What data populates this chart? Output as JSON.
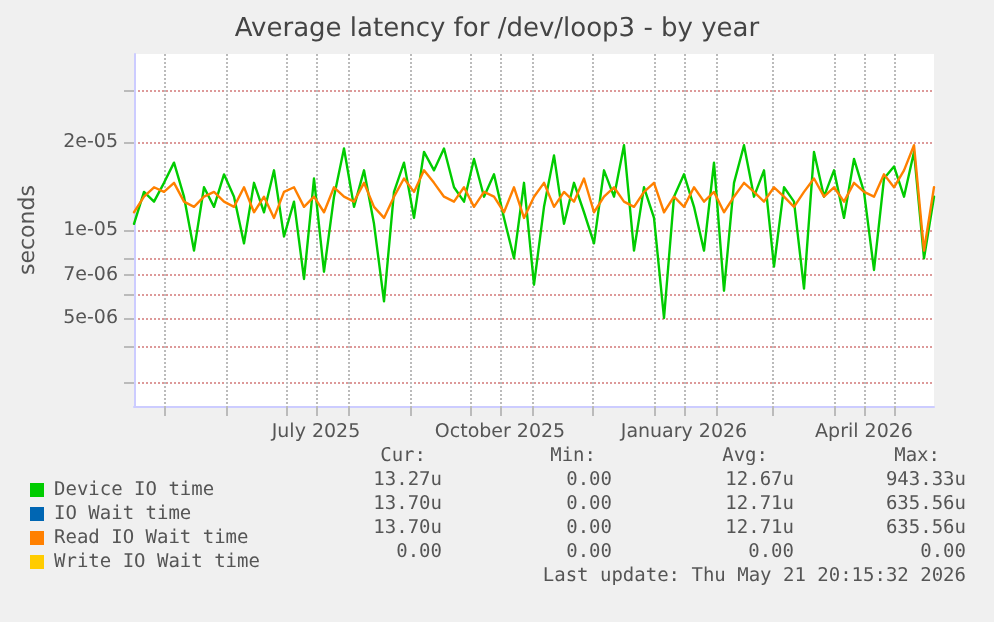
{
  "chart_data": {
    "type": "line",
    "title": "Average latency for /dev/loop3 - by year",
    "ylabel": "seconds",
    "log": "y",
    "grid": true,
    "legend": "bottom",
    "marker": "none",
    "line_style": "solid",
    "xlim": [
      "2025-04-16",
      "2026-05-21"
    ],
    "xticks": [
      {
        "value": "2025-05-01",
        "label": null
      },
      {
        "value": "2025-06-01",
        "label": null
      },
      {
        "value": "2025-07-01",
        "label": null
      },
      {
        "value": "2025-07-16",
        "label": "July 2025"
      },
      {
        "value": "2025-08-01",
        "label": null
      },
      {
        "value": "2025-09-01",
        "label": null
      },
      {
        "value": "2025-10-01",
        "label": null
      },
      {
        "value": "2025-10-16",
        "label": "October 2025"
      },
      {
        "value": "2025-11-01",
        "label": null
      },
      {
        "value": "2025-12-01",
        "label": null
      },
      {
        "value": "2026-01-01",
        "label": null
      },
      {
        "value": "2026-01-16",
        "label": "January 2026"
      },
      {
        "value": "2026-02-01",
        "label": null
      },
      {
        "value": "2026-03-01",
        "label": null
      },
      {
        "value": "2026-04-01",
        "label": null
      },
      {
        "value": "2026-04-16",
        "label": "April 2026"
      },
      {
        "value": "2026-05-01",
        "label": null
      }
    ],
    "ylim": [
      2.5e-06,
      4e-05
    ],
    "yticks": [
      {
        "value": 3e-06,
        "label": null
      },
      {
        "value": 4e-06,
        "label": null
      },
      {
        "value": 5e-06,
        "label": "5e-06"
      },
      {
        "value": 6e-06,
        "label": null
      },
      {
        "value": 7e-06,
        "label": "7e-06"
      },
      {
        "value": 8e-06,
        "label": null
      },
      {
        "value": 1e-05,
        "label": "1e-05"
      },
      {
        "value": 2e-05,
        "label": "2e-05"
      },
      {
        "value": 3e-05,
        "label": null
      }
    ],
    "x": [
      "2025-04-16",
      "2025-04-21",
      "2025-04-26",
      "2025-05-01",
      "2025-05-06",
      "2025-05-11",
      "2025-05-16",
      "2025-05-21",
      "2025-05-26",
      "2025-05-31",
      "2025-06-05",
      "2025-06-10",
      "2025-06-15",
      "2025-06-20",
      "2025-06-25",
      "2025-06-30",
      "2025-07-05",
      "2025-07-10",
      "2025-07-15",
      "2025-07-20",
      "2025-07-25",
      "2025-07-30",
      "2025-08-04",
      "2025-08-09",
      "2025-08-14",
      "2025-08-19",
      "2025-08-24",
      "2025-08-29",
      "2025-09-03",
      "2025-09-08",
      "2025-09-13",
      "2025-09-18",
      "2025-09-23",
      "2025-09-28",
      "2025-10-03",
      "2025-10-08",
      "2025-10-13",
      "2025-10-18",
      "2025-10-23",
      "2025-10-28",
      "2025-11-02",
      "2025-11-07",
      "2025-11-12",
      "2025-11-17",
      "2025-11-22",
      "2025-11-27",
      "2025-12-02",
      "2025-12-07",
      "2025-12-12",
      "2025-12-17",
      "2025-12-22",
      "2025-12-27",
      "2026-01-01",
      "2026-01-06",
      "2026-01-11",
      "2026-01-16",
      "2026-01-21",
      "2026-01-26",
      "2026-01-31",
      "2026-02-05",
      "2026-02-10",
      "2026-02-15",
      "2026-02-20",
      "2026-02-25",
      "2026-03-02",
      "2026-03-07",
      "2026-03-12",
      "2026-03-17",
      "2026-03-22",
      "2026-03-27",
      "2026-04-01",
      "2026-04-06",
      "2026-04-11",
      "2026-04-16",
      "2026-04-21",
      "2026-04-26",
      "2026-05-01",
      "2026-05-06",
      "2026-05-11",
      "2026-05-16",
      "2026-05-21"
    ],
    "series": [
      {
        "name": "Device IO time",
        "color": "#00cc00",
        "values": [
          1.05e-05,
          1.35e-05,
          1.25e-05,
          1.45e-05,
          1.7e-05,
          1.3e-05,
          8.5e-06,
          1.4e-05,
          1.2e-05,
          1.55e-05,
          1.3e-05,
          9e-06,
          1.45e-05,
          1.15e-05,
          1.6e-05,
          9.5e-06,
          1.25e-05,
          6.8e-06,
          1.5e-05,
          7.2e-06,
          1.3e-05,
          1.9e-05,
          1.2e-05,
          1.6e-05,
          1.05e-05,
          5.7e-06,
          1.35e-05,
          1.7e-05,
          1.1e-05,
          1.85e-05,
          1.6e-05,
          1.9e-05,
          1.4e-05,
          1.25e-05,
          1.75e-05,
          1.3e-05,
          1.55e-05,
          1.1e-05,
          8e-06,
          1.45e-05,
          6.5e-06,
          1.2e-05,
          1.8e-05,
          1.05e-05,
          1.45e-05,
          1.15e-05,
          9e-06,
          1.6e-05,
          1.3e-05,
          1.95e-05,
          8.5e-06,
          1.4e-05,
          1.1e-05,
          5e-06,
          1.3e-05,
          1.55e-05,
          1.2e-05,
          8.5e-06,
          1.7e-05,
          6.2e-06,
          1.45e-05,
          1.95e-05,
          1.3e-05,
          1.6e-05,
          7.5e-06,
          1.4e-05,
          1.25e-05,
          6.3e-06,
          1.85e-05,
          1.3e-05,
          1.6e-05,
          1.1e-05,
          1.75e-05,
          1.35e-05,
          7.3e-06,
          1.5e-05,
          1.65e-05,
          1.3e-05,
          1.85e-05,
          8e-06,
          1.3e-05
        ]
      },
      {
        "name": "IO Wait time",
        "color": "#0066b3",
        "values": [
          null,
          null,
          null,
          null,
          null,
          null,
          null,
          null,
          null,
          null,
          null,
          null,
          null,
          null,
          null,
          null,
          null,
          null,
          null,
          null,
          null,
          null,
          null,
          null,
          null,
          null,
          null,
          null,
          null,
          null,
          null,
          null,
          null,
          null,
          null,
          null,
          null,
          null,
          null,
          null,
          null,
          null,
          null,
          null,
          null,
          null,
          null,
          null,
          null,
          null,
          null,
          null,
          null,
          null,
          null,
          null,
          null,
          null,
          null,
          null,
          null,
          null,
          null,
          null,
          null,
          null,
          null,
          null,
          null,
          null,
          null,
          null,
          null,
          null,
          null,
          null,
          null,
          null,
          null,
          null,
          null
        ]
      },
      {
        "name": "Read IO Wait time",
        "color": "#ff8000",
        "values": [
          1.15e-05,
          1.3e-05,
          1.4e-05,
          1.35e-05,
          1.45e-05,
          1.25e-05,
          1.2e-05,
          1.3e-05,
          1.35e-05,
          1.25e-05,
          1.2e-05,
          1.4e-05,
          1.15e-05,
          1.3e-05,
          1.1e-05,
          1.35e-05,
          1.4e-05,
          1.2e-05,
          1.3e-05,
          1.15e-05,
          1.4e-05,
          1.3e-05,
          1.25e-05,
          1.45e-05,
          1.2e-05,
          1.1e-05,
          1.3e-05,
          1.5e-05,
          1.35e-05,
          1.6e-05,
          1.45e-05,
          1.3e-05,
          1.25e-05,
          1.4e-05,
          1.2e-05,
          1.35e-05,
          1.3e-05,
          1.15e-05,
          1.4e-05,
          1.1e-05,
          1.3e-05,
          1.45e-05,
          1.2e-05,
          1.35e-05,
          1.25e-05,
          1.5e-05,
          1.15e-05,
          1.3e-05,
          1.4e-05,
          1.25e-05,
          1.2e-05,
          1.35e-05,
          1.45e-05,
          1.15e-05,
          1.3e-05,
          1.2e-05,
          1.4e-05,
          1.25e-05,
          1.35e-05,
          1.15e-05,
          1.3e-05,
          1.45e-05,
          1.35e-05,
          1.25e-05,
          1.4e-05,
          1.3e-05,
          1.2e-05,
          1.35e-05,
          1.5e-05,
          1.3e-05,
          1.4e-05,
          1.25e-05,
          1.45e-05,
          1.35e-05,
          1.3e-05,
          1.55e-05,
          1.4e-05,
          1.6e-05,
          1.95e-05,
          8.5e-06,
          1.4e-05
        ]
      },
      {
        "name": "Write IO Wait time",
        "color": "#ffcc00",
        "values": [
          null,
          null,
          null,
          null,
          null,
          null,
          null,
          null,
          null,
          null,
          null,
          null,
          null,
          null,
          null,
          null,
          null,
          null,
          null,
          null,
          null,
          null,
          null,
          null,
          null,
          null,
          null,
          null,
          null,
          null,
          null,
          null,
          null,
          null,
          null,
          null,
          null,
          null,
          null,
          null,
          null,
          null,
          null,
          null,
          null,
          null,
          null,
          null,
          null,
          null,
          null,
          null,
          null,
          null,
          null,
          null,
          null,
          null,
          null,
          null,
          null,
          null,
          null,
          null,
          null,
          null,
          null,
          null,
          null,
          null,
          null,
          null,
          null,
          null,
          null,
          null,
          null,
          null,
          null,
          null,
          null
        ]
      }
    ],
    "annotations": [
      "Cur:",
      "Min:",
      "Avg:",
      "Max:",
      "13.27u",
      "0.00",
      "12.67u",
      "943.33u",
      "13.70u",
      "0.00",
      "12.71u",
      "635.56u",
      "13.70u",
      "0.00",
      "12.71u",
      "635.56u",
      "0.00",
      "0.00",
      "0.00",
      "0.00",
      "Last update: Thu May 21 20:15:32 2026"
    ]
  }
}
